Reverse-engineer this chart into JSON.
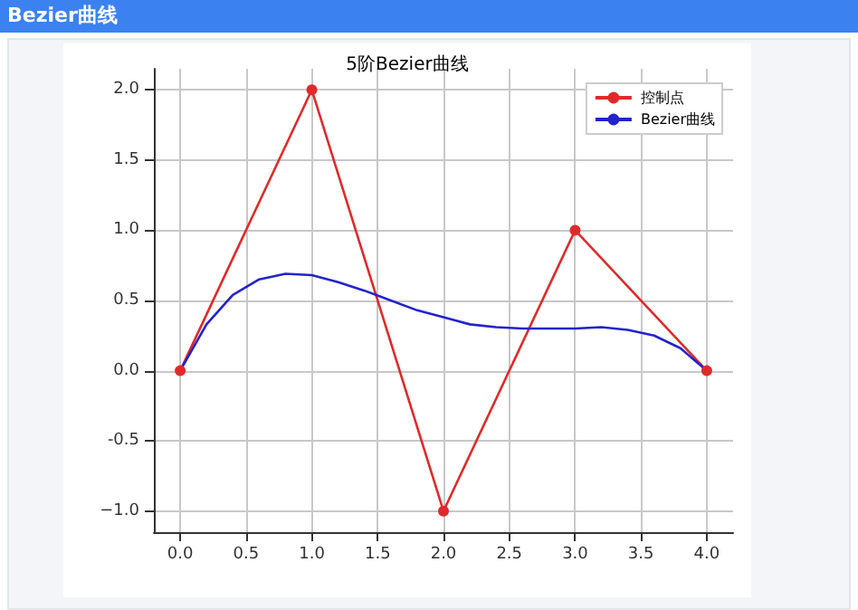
{
  "chart_data": {
    "type": "line",
    "title": "Bezier曲线",
    "subtitle": "5阶Bezier曲线",
    "series": [
      {
        "name": "控制点",
        "color": "#e02a2a",
        "marker": "circle",
        "x": [
          0,
          1,
          2,
          3,
          4
        ],
        "values": [
          0,
          2,
          -1,
          1,
          0
        ]
      },
      {
        "name": "Bezier曲线",
        "color": "#2323cc",
        "marker": "none",
        "x": [
          0,
          0.2,
          0.4,
          0.6,
          0.8,
          1,
          1.2,
          1.4,
          1.6,
          1.8,
          2,
          2.2,
          2.4,
          2.6,
          2.8,
          3,
          3.2,
          3.4,
          3.6,
          3.8,
          4
        ],
        "values": [
          0,
          0.33,
          0.54,
          0.65,
          0.69,
          0.68,
          0.63,
          0.57,
          0.5,
          0.43,
          0.38,
          0.33,
          0.31,
          0.3,
          0.3,
          0.3,
          0.31,
          0.29,
          0.25,
          0.16,
          0
        ]
      }
    ],
    "xlim": [
      -0.2,
      4.2
    ],
    "xticks": [
      {
        "value": 0,
        "label": "0.0"
      },
      0.5,
      {
        "value": 1,
        "label": "1.0"
      },
      1.5,
      {
        "value": 2,
        "label": "2.0"
      },
      2.5,
      {
        "value": 3,
        "label": "3.0"
      },
      3.5,
      {
        "value": 4,
        "label": "4.0"
      }
    ],
    "ylim": [
      -1.15,
      2.15
    ],
    "yticks": [
      {
        "value": -1,
        "label": "−1.0"
      },
      -0.5,
      {
        "value": 0,
        "label": "0.0"
      },
      0.5,
      {
        "value": 1,
        "label": "1.0"
      },
      1.5,
      {
        "value": 2,
        "label": "2.0"
      }
    ],
    "grid": true,
    "legend": "top right",
    "line_style": "solid"
  }
}
